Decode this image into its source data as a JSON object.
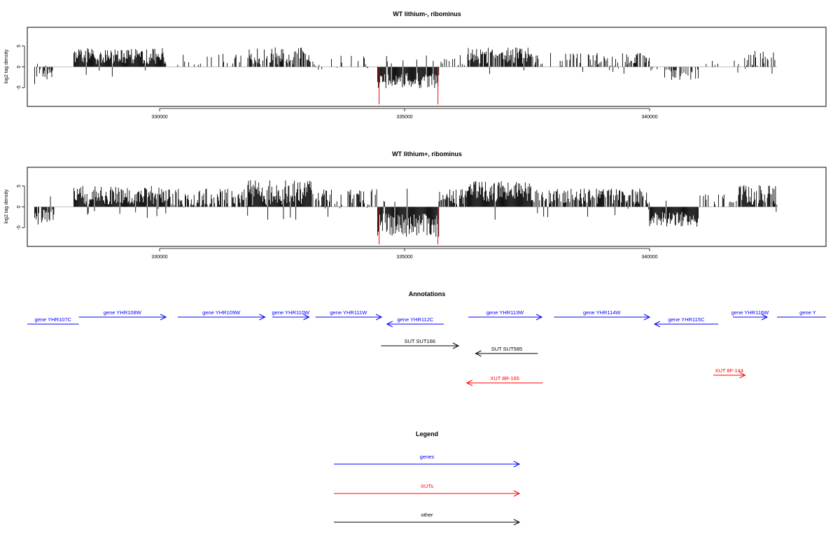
{
  "chart_data": [
    {
      "type": "bar",
      "title": "WT lithium-, ribominus",
      "ylabel": "log2 tag density",
      "xlim": [
        327300,
        343600
      ],
      "ylim": [
        -9.5,
        9.5
      ],
      "xticks": [
        330000,
        335000,
        340000
      ],
      "yticks": [
        -5,
        0,
        5
      ],
      "highlight_positions": [
        334480,
        335680
      ],
      "highlight_color": "#ff0000",
      "highlight_value": -9,
      "segments": [
        {
          "start": 327450,
          "end": 327850,
          "mean": -2.3,
          "amp": 1.2,
          "density": 0.6
        },
        {
          "start": 328250,
          "end": 330130,
          "mean": 2.6,
          "amp": 1.2,
          "density": 1.0
        },
        {
          "start": 330300,
          "end": 331800,
          "mean": 1.8,
          "amp": 1.0,
          "density": 0.25
        },
        {
          "start": 331800,
          "end": 333100,
          "mean": 2.6,
          "amp": 1.3,
          "density": 0.7
        },
        {
          "start": 333100,
          "end": 334450,
          "mean": 1.2,
          "amp": 1.0,
          "density": 0.2
        },
        {
          "start": 334450,
          "end": 335700,
          "mean": -3.3,
          "amp": 1.2,
          "density": 1.0
        },
        {
          "start": 335700,
          "end": 336300,
          "mean": 1.5,
          "amp": 1.0,
          "density": 0.3
        },
        {
          "start": 336300,
          "end": 337600,
          "mean": 2.7,
          "amp": 1.2,
          "density": 0.9
        },
        {
          "start": 337600,
          "end": 340000,
          "mean": 1.8,
          "amp": 1.0,
          "density": 0.35
        },
        {
          "start": 340000,
          "end": 341000,
          "mean": -1.8,
          "amp": 1.0,
          "density": 0.5
        },
        {
          "start": 341000,
          "end": 341800,
          "mean": 0.8,
          "amp": 0.8,
          "density": 0.1
        },
        {
          "start": 341800,
          "end": 342600,
          "mean": 2.0,
          "amp": 1.2,
          "density": 0.5
        }
      ]
    },
    {
      "type": "bar",
      "title": "WT lithium+, ribominus",
      "ylabel": "log2 tag density",
      "xlim": [
        327300,
        343600
      ],
      "ylim": [
        -9.5,
        9.5
      ],
      "xticks": [
        330000,
        335000,
        340000
      ],
      "yticks": [
        -5,
        0,
        5
      ],
      "highlight_positions": [
        334480,
        335680
      ],
      "highlight_color": "#ff0000",
      "highlight_value": -9,
      "segments": [
        {
          "start": 327450,
          "end": 327850,
          "mean": -2.6,
          "amp": 1.3,
          "density": 0.8
        },
        {
          "start": 328250,
          "end": 330130,
          "mean": 2.8,
          "amp": 1.4,
          "density": 1.0
        },
        {
          "start": 330130,
          "end": 331800,
          "mean": 2.3,
          "amp": 1.3,
          "density": 0.75
        },
        {
          "start": 331800,
          "end": 333100,
          "mean": 3.5,
          "amp": 2.0,
          "density": 1.0
        },
        {
          "start": 333100,
          "end": 334450,
          "mean": 2.2,
          "amp": 1.3,
          "density": 0.6
        },
        {
          "start": 334450,
          "end": 335700,
          "mean": -4.5,
          "amp": 1.8,
          "density": 1.0
        },
        {
          "start": 335700,
          "end": 336300,
          "mean": 2.4,
          "amp": 1.2,
          "density": 0.7
        },
        {
          "start": 336300,
          "end": 337600,
          "mean": 3.6,
          "amp": 1.6,
          "density": 1.0
        },
        {
          "start": 337600,
          "end": 340000,
          "mean": 2.5,
          "amp": 1.2,
          "density": 0.75
        },
        {
          "start": 340000,
          "end": 341000,
          "mean": -3.0,
          "amp": 1.2,
          "density": 1.0
        },
        {
          "start": 341000,
          "end": 341800,
          "mean": 1.5,
          "amp": 1.0,
          "density": 0.4
        },
        {
          "start": 341800,
          "end": 342600,
          "mean": 2.8,
          "amp": 1.5,
          "density": 0.8
        }
      ]
    }
  ],
  "annotations": {
    "title": "Annotations",
    "features": [
      {
        "label": "gene YHR107C",
        "start": 327300,
        "end": 328350,
        "strand": "-",
        "type": "gene",
        "row": 0
      },
      {
        "label": "gene YHR108W",
        "start": 328350,
        "end": 330130,
        "strand": "+",
        "type": "gene",
        "row": 0
      },
      {
        "label": "gene YHR109W",
        "start": 330370,
        "end": 332150,
        "strand": "+",
        "type": "gene",
        "row": 0
      },
      {
        "label": "gene YHR110W",
        "start": 332300,
        "end": 333050,
        "strand": "+",
        "type": "gene",
        "row": 0
      },
      {
        "label": "gene YHR111W",
        "start": 333180,
        "end": 334530,
        "strand": "+",
        "type": "gene",
        "row": 0
      },
      {
        "label": "gene YHR112C",
        "start": 334640,
        "end": 335800,
        "strand": "-",
        "type": "gene",
        "row": 0
      },
      {
        "label": "gene YHR113W",
        "start": 336300,
        "end": 337800,
        "strand": "+",
        "type": "gene",
        "row": 0
      },
      {
        "label": "gene YHR114W",
        "start": 338050,
        "end": 340000,
        "strand": "+",
        "type": "gene",
        "row": 0
      },
      {
        "label": "gene YHR115C",
        "start": 340100,
        "end": 341400,
        "strand": "-",
        "type": "gene",
        "row": 0
      },
      {
        "label": "gene YHR116W",
        "start": 341700,
        "end": 342400,
        "strand": "+",
        "type": "gene",
        "row": 0
      },
      {
        "label": "gene Y",
        "start": 342600,
        "end": 343600,
        "strand": "+",
        "type": "gene",
        "row": 0
      },
      {
        "label": "SUT SUT166",
        "start": 334520,
        "end": 336100,
        "strand": "+",
        "type": "other",
        "row": 1
      },
      {
        "label": "SUT SUT585",
        "start": 336450,
        "end": 337720,
        "strand": "-",
        "type": "other",
        "row": 2
      },
      {
        "label": "XUT 8R-165",
        "start": 336270,
        "end": 337820,
        "strand": "-",
        "type": "xut",
        "row": 3
      },
      {
        "label": "XUT 8F-144",
        "start": 341300,
        "end": 341950,
        "strand": "+",
        "type": "xut",
        "row": 4
      }
    ]
  },
  "legend": {
    "title": "Legend",
    "items": [
      {
        "label": "genes",
        "color": "#0000ff"
      },
      {
        "label": "XUTs",
        "color": "#ff0000"
      },
      {
        "label": "other",
        "color": "#000000"
      }
    ]
  },
  "colors": {
    "gene": "#0000ff",
    "xut": "#ff0000",
    "other": "#000000",
    "axis": "#000000",
    "baseline": "#888888"
  }
}
